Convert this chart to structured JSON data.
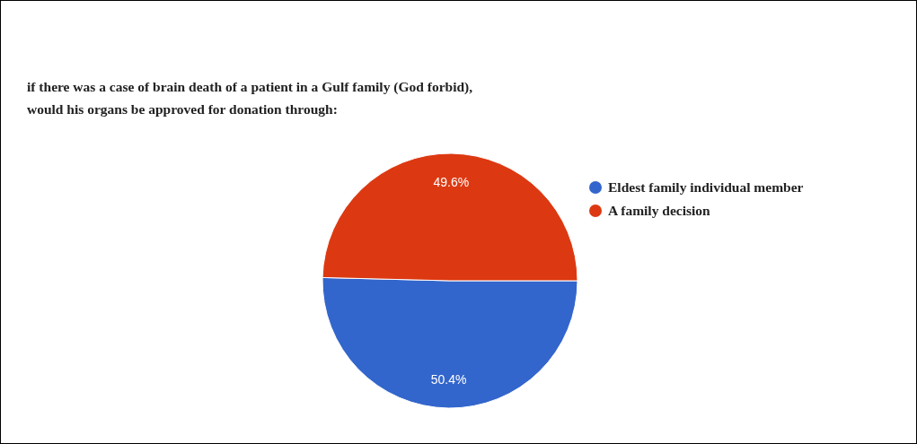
{
  "chart_data": {
    "type": "pie",
    "title": "if there was a case of brain death of a patient in a Gulf family (God forbid),\nwould his organs be approved for donation through:",
    "categories": [
      "Eldest family individual member",
      "A family decision"
    ],
    "values": [
      50.4,
      49.6
    ],
    "colors": [
      "#3366cc",
      "#dc3912"
    ],
    "value_labels": [
      "50.4%",
      "49.6%"
    ],
    "legend": "right"
  }
}
